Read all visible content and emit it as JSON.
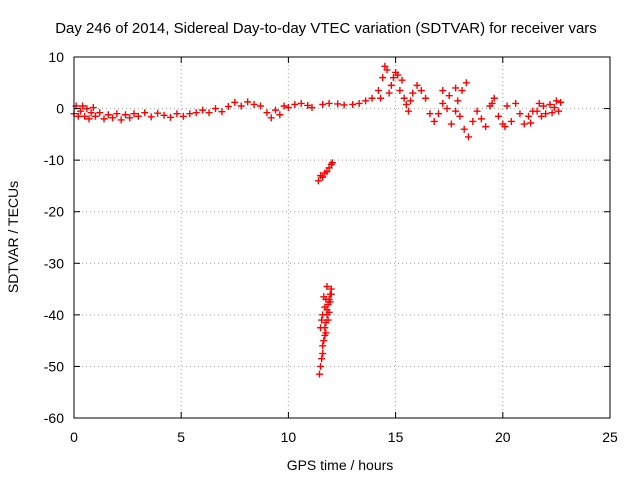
{
  "chart_data": {
    "type": "scatter",
    "title": "Day 246 of 2014, Sidereal Day-to-day VTEC variation (SDTVAR) for receiver vars",
    "xlabel": "GPS time / hours",
    "ylabel": "SDTVAR / TECUs",
    "xlim": [
      0,
      25
    ],
    "ylim": [
      -60,
      10
    ],
    "xticks": [
      "0",
      "5",
      "10",
      "15",
      "20",
      "25"
    ],
    "yticks": [
      "10",
      "0",
      "-10",
      "-20",
      "-30",
      "-40",
      "-50",
      "-60"
    ],
    "grid": true,
    "marker": "+",
    "colors": {
      "series": "#ff0000",
      "grid": "#a0a0a0",
      "axes": "#000000"
    },
    "series": [
      {
        "name": "SDTVAR",
        "points": [
          [
            0.0,
            -1.0
          ],
          [
            0.1,
            0.5
          ],
          [
            0.2,
            -1.5
          ],
          [
            0.3,
            -0.5
          ],
          [
            0.4,
            0.5
          ],
          [
            0.5,
            -1.5
          ],
          [
            0.6,
            0.0
          ],
          [
            0.7,
            -2.0
          ],
          [
            0.8,
            -0.8
          ],
          [
            0.9,
            0.2
          ],
          [
            1.0,
            -1.5
          ],
          [
            1.2,
            -0.8
          ],
          [
            1.4,
            -2.0
          ],
          [
            1.6,
            -1.2
          ],
          [
            1.8,
            -1.8
          ],
          [
            2.0,
            -1.0
          ],
          [
            2.2,
            -2.2
          ],
          [
            2.4,
            -1.2
          ],
          [
            2.6,
            -1.8
          ],
          [
            2.8,
            -1.0
          ],
          [
            3.0,
            -1.5
          ],
          [
            3.3,
            -0.8
          ],
          [
            3.6,
            -1.6
          ],
          [
            3.9,
            -0.9
          ],
          [
            4.2,
            -1.3
          ],
          [
            4.5,
            -1.7
          ],
          [
            4.8,
            -1.0
          ],
          [
            5.1,
            -1.5
          ],
          [
            5.4,
            -1.0
          ],
          [
            5.7,
            -0.8
          ],
          [
            6.0,
            -0.3
          ],
          [
            6.3,
            -0.8
          ],
          [
            6.6,
            0.0
          ],
          [
            6.9,
            -0.6
          ],
          [
            7.2,
            0.4
          ],
          [
            7.5,
            1.2
          ],
          [
            7.8,
            0.5
          ],
          [
            8.1,
            1.3
          ],
          [
            8.4,
            0.8
          ],
          [
            8.7,
            0.5
          ],
          [
            9.0,
            -0.8
          ],
          [
            9.2,
            -1.8
          ],
          [
            9.4,
            -0.3
          ],
          [
            9.6,
            -1.2
          ],
          [
            9.8,
            0.5
          ],
          [
            10.0,
            0.2
          ],
          [
            10.3,
            0.8
          ],
          [
            10.6,
            1.0
          ],
          [
            10.9,
            0.6
          ],
          [
            11.1,
            0.2
          ],
          [
            11.6,
            0.8
          ],
          [
            11.9,
            1.0
          ],
          [
            12.3,
            0.9
          ],
          [
            12.6,
            0.7
          ],
          [
            13.0,
            0.8
          ],
          [
            13.3,
            1.0
          ],
          [
            13.6,
            1.5
          ],
          [
            13.9,
            2.0
          ],
          [
            14.2,
            3.5
          ],
          [
            14.3,
            2.0
          ],
          [
            14.4,
            6.0
          ],
          [
            14.5,
            8.2
          ],
          [
            14.6,
            7.5
          ],
          [
            14.7,
            3.0
          ],
          [
            14.8,
            4.5
          ],
          [
            14.9,
            6.0
          ],
          [
            15.0,
            7.0
          ],
          [
            15.1,
            6.5
          ],
          [
            15.2,
            3.5
          ],
          [
            15.3,
            5.5
          ],
          [
            15.4,
            2.0
          ],
          [
            15.5,
            0.8
          ],
          [
            15.6,
            -0.5
          ],
          [
            15.7,
            1.5
          ],
          [
            15.8,
            3.0
          ],
          [
            16.0,
            4.5
          ],
          [
            16.2,
            3.5
          ],
          [
            16.4,
            2.0
          ],
          [
            16.6,
            -1.0
          ],
          [
            16.8,
            -2.5
          ],
          [
            17.0,
            -1.0
          ],
          [
            17.2,
            1.0
          ],
          [
            17.4,
            0.0
          ],
          [
            17.6,
            -3.0
          ],
          [
            17.8,
            -0.5
          ],
          [
            18.0,
            -1.5
          ],
          [
            18.2,
            -4.0
          ],
          [
            18.4,
            -5.5
          ],
          [
            18.6,
            -2.5
          ],
          [
            18.8,
            -0.5
          ],
          [
            19.0,
            -2.0
          ],
          [
            19.2,
            -3.5
          ],
          [
            19.4,
            0.5
          ],
          [
            19.6,
            2.0
          ],
          [
            19.8,
            -1.5
          ],
          [
            20.0,
            -3.0
          ],
          [
            20.2,
            0.5
          ],
          [
            20.4,
            -2.5
          ],
          [
            20.6,
            1.0
          ],
          [
            20.8,
            -1.0
          ],
          [
            21.0,
            -3.0
          ],
          [
            21.2,
            -1.5
          ],
          [
            21.4,
            -0.5
          ],
          [
            17.2,
            3.5
          ],
          [
            17.5,
            2.5
          ],
          [
            17.8,
            4.0
          ],
          [
            18.1,
            3.5
          ],
          [
            18.3,
            5.0
          ],
          [
            17.9,
            1.5
          ],
          [
            19.5,
            1.0
          ],
          [
            20.1,
            -3.5
          ],
          [
            21.3,
            -2.8
          ],
          [
            21.6,
            -0.5
          ],
          [
            21.7,
            1.0
          ],
          [
            21.8,
            -1.5
          ],
          [
            21.9,
            0.5
          ],
          [
            22.0,
            -1.0
          ],
          [
            22.2,
            0.8
          ],
          [
            22.3,
            -0.8
          ],
          [
            22.4,
            0.2
          ],
          [
            22.5,
            1.5
          ],
          [
            22.6,
            -0.5
          ],
          [
            22.7,
            1.2
          ],
          [
            11.4,
            -14.0
          ],
          [
            11.5,
            -13.0
          ],
          [
            11.6,
            -13.3
          ],
          [
            11.7,
            -12.5
          ],
          [
            11.8,
            -12.2
          ],
          [
            11.9,
            -11.5
          ],
          [
            12.0,
            -10.8
          ],
          [
            12.05,
            -10.5
          ],
          [
            11.45,
            -51.5
          ],
          [
            11.5,
            -50.0
          ],
          [
            11.55,
            -48.5
          ],
          [
            11.6,
            -47.5
          ],
          [
            11.6,
            -46.0
          ],
          [
            11.65,
            -45.0
          ],
          [
            11.7,
            -44.0
          ],
          [
            11.7,
            -42.5
          ],
          [
            11.75,
            -41.5
          ],
          [
            11.8,
            -40.0
          ],
          [
            11.8,
            -39.0
          ],
          [
            11.85,
            -38.0
          ],
          [
            11.9,
            -37.0
          ],
          [
            11.95,
            -36.0
          ],
          [
            12.0,
            -35.0
          ],
          [
            11.5,
            -42.5
          ],
          [
            11.55,
            -41.0
          ],
          [
            11.6,
            -40.0
          ],
          [
            11.7,
            -38.5
          ],
          [
            11.75,
            -37.0
          ],
          [
            11.9,
            -39.5
          ],
          [
            11.95,
            -37.5
          ],
          [
            12.0,
            -36.0
          ],
          [
            11.65,
            -36.5
          ],
          [
            11.8,
            -34.5
          ],
          [
            11.85,
            -41.0
          ],
          [
            11.75,
            -43.5
          ]
        ]
      }
    ]
  }
}
